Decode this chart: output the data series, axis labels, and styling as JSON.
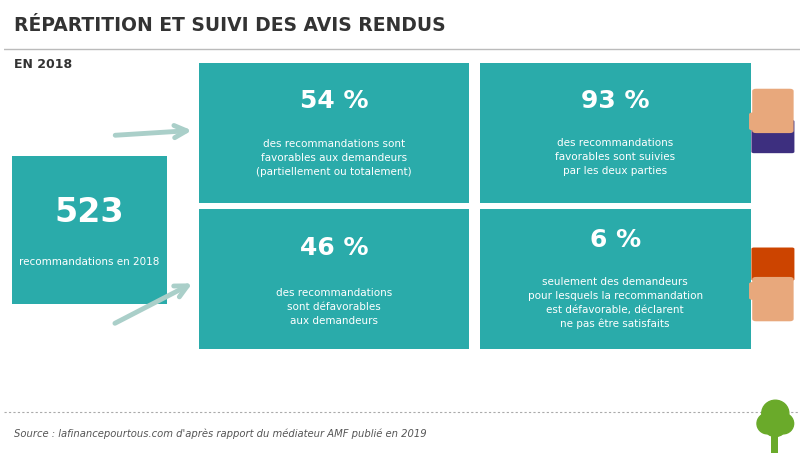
{
  "title": "RÉPARTITION ET SUIVI DES AVIS RENDUS",
  "subtitle": "EN 2018",
  "bg_color": "#ffffff",
  "title_color": "#333333",
  "teal_color": "#2aabaa",
  "left_box": {
    "number": "523",
    "text": "recommandations en 2018",
    "color": "#2aabaa"
  },
  "top_left_box": {
    "percent": "54 %",
    "text": "des recommandations sont\nfavorables aux demandeurs\n(partiellement ou totalement)",
    "color": "#2aabaa"
  },
  "top_right_box": {
    "percent": "93 %",
    "text": "des recommandations\nfavorables sont suivies\npar les deux parties",
    "color": "#2aabaa"
  },
  "bot_left_box": {
    "percent": "46 %",
    "text": "des recommandations\nsont défavorables\naux demandeurs",
    "color": "#2aabaa"
  },
  "bot_right_box": {
    "percent": "6 %",
    "text": "seulement des demandeurs\npour lesquels la recommandation\nest défavorable, déclarent\nne pas être satisfaits",
    "color": "#2aabaa"
  },
  "source_text": "Source : lafinancepourtous.com d'après rapport du médiateur AMF publié en 2019",
  "arrow_color": "#aacfc9",
  "thumb_up_sleeve": "#3d2f7f",
  "thumb_down_sleeve": "#cc4400",
  "thumb_skin": "#e8a87c",
  "tree_color": "#6aaa2a"
}
